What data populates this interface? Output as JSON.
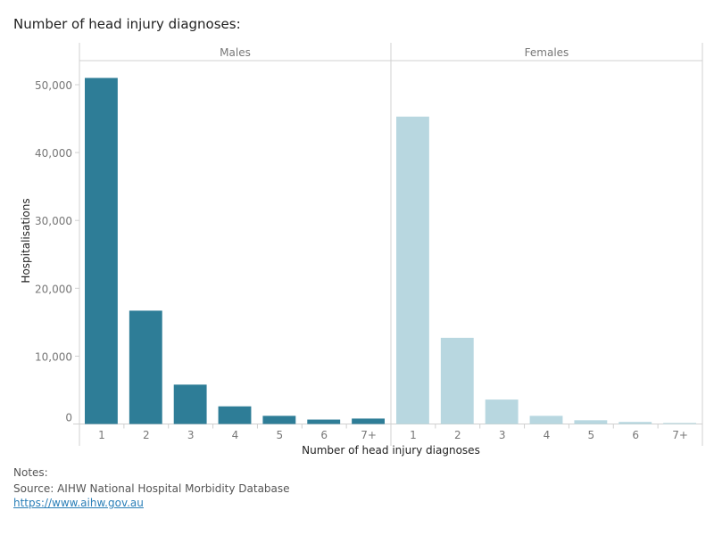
{
  "title": "Number of head injury diagnoses:",
  "notes": {
    "label": "Notes:",
    "source": "Source: AIHW National Hospital Morbidity Database",
    "link": "https://www.aihw.gov.au"
  },
  "chart_data": {
    "type": "bar",
    "title": "Number of head injury diagnoses:",
    "xlabel": "Number of head injury diagnoses",
    "ylabel": "Hospitalisations",
    "ylim": [
      0,
      53000
    ],
    "yticks": [
      0,
      10000,
      20000,
      30000,
      40000,
      50000
    ],
    "ytick_labels": [
      "0",
      "10,000",
      "20,000",
      "30,000",
      "40,000",
      "50,000"
    ],
    "categories": [
      "1",
      "2",
      "3",
      "4",
      "5",
      "6",
      "7+"
    ],
    "grid": false,
    "panels": [
      {
        "name": "Males",
        "color": "#2e7d97",
        "values": [
          51000,
          16700,
          5800,
          2600,
          1200,
          650,
          800
        ]
      },
      {
        "name": "Females",
        "color": "#b8d7e0",
        "values": [
          45300,
          12700,
          3600,
          1200,
          550,
          300,
          150
        ]
      }
    ]
  }
}
